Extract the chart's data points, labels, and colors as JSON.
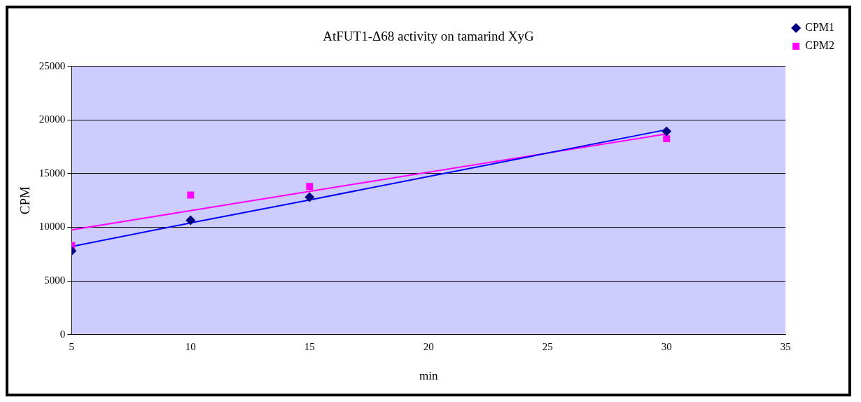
{
  "chart_data": {
    "type": "scatter",
    "title": "AtFUT1-Δ68 activity on tamarind XyG",
    "xlabel": "min",
    "ylabel": "CPM",
    "x": [
      5,
      10,
      15,
      30
    ],
    "series": [
      {
        "name": "CPM1",
        "color": "#000080",
        "marker": "diamond",
        "values": [
          7800,
          10650,
          12800,
          18950
        ]
      },
      {
        "name": "CPM2",
        "color": "#ff00ff",
        "marker": "square",
        "values": [
          8300,
          13000,
          13800,
          18250
        ]
      },
      {
        "type": "line",
        "color": "#0000ff",
        "marker": "none",
        "values": [
          8200,
          10400,
          12550,
          19100
        ]
      },
      {
        "type": "line",
        "color": "#ff00ff",
        "marker": "none",
        "values": [
          9750,
          11550,
          13350,
          18700
        ]
      }
    ],
    "xlim": [
      5,
      35
    ],
    "xticks": [
      5,
      10,
      15,
      20,
      25,
      30,
      35
    ],
    "ylim": [
      0,
      25000
    ],
    "yticks": [
      0,
      5000,
      10000,
      15000,
      20000,
      25000
    ],
    "grid": "y",
    "legend": "right"
  }
}
